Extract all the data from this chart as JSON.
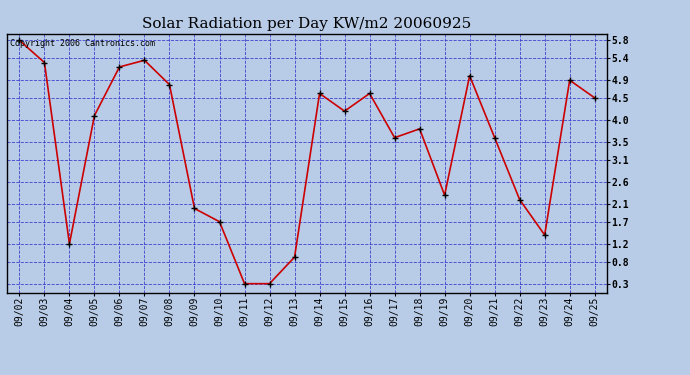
{
  "title": "Solar Radiation per Day KW/m2 20060925",
  "copyright": "Copyright 2006 Cantronics.com",
  "dates": [
    "09/02",
    "09/03",
    "09/04",
    "09/05",
    "09/06",
    "09/07",
    "09/08",
    "09/09",
    "09/10",
    "09/11",
    "09/12",
    "09/13",
    "09/14",
    "09/15",
    "09/16",
    "09/17",
    "09/18",
    "09/19",
    "09/20",
    "09/21",
    "09/22",
    "09/23",
    "09/24",
    "09/25"
  ],
  "values": [
    5.8,
    5.3,
    1.2,
    4.1,
    5.2,
    5.35,
    4.8,
    2.0,
    1.7,
    0.3,
    0.3,
    0.9,
    4.6,
    4.2,
    4.6,
    3.6,
    3.8,
    2.3,
    5.0,
    3.6,
    2.2,
    1.4,
    4.9,
    4.5
  ],
  "line_color": "#cc0000",
  "marker_color": "#000000",
  "bg_color": "#b8cce8",
  "grid_color": "#3333cc",
  "border_color": "#000000",
  "yticks": [
    0.3,
    0.8,
    1.2,
    1.7,
    2.1,
    2.6,
    3.1,
    3.5,
    4.0,
    4.5,
    4.9,
    5.4,
    5.8
  ],
  "ymin": 0.1,
  "ymax": 5.95,
  "title_fontsize": 11,
  "copyright_fontsize": 6,
  "tick_fontsize": 7,
  "marker_size": 4
}
